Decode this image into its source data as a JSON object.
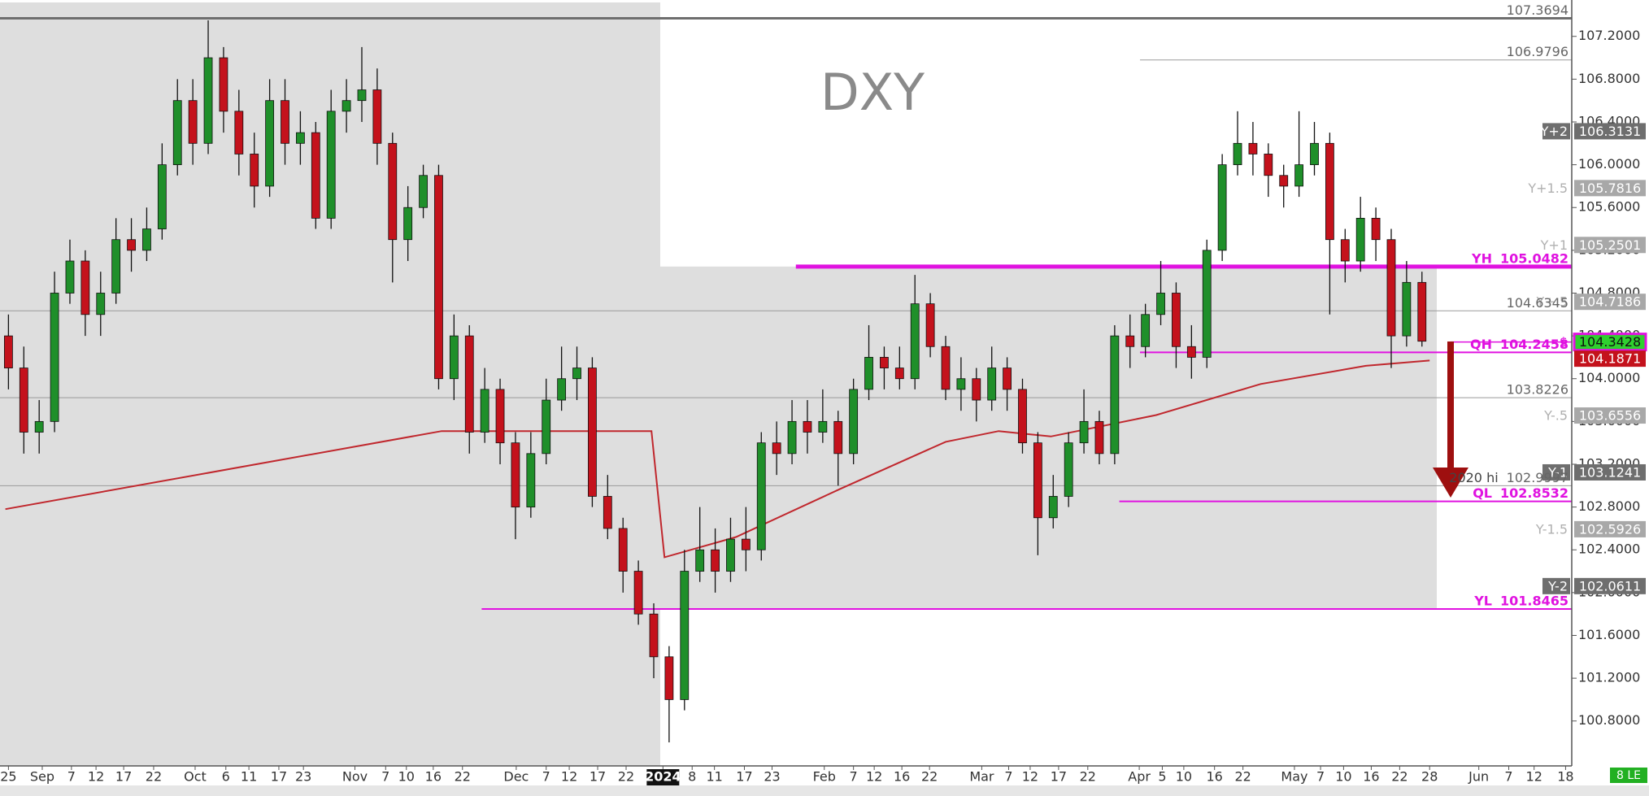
{
  "chart_data": {
    "type": "candlestick",
    "title": "DXY",
    "x": [
      0,
      2,
      4,
      6,
      8,
      10,
      12,
      14,
      16,
      18,
      20,
      22,
      24,
      26,
      28,
      30,
      32,
      34,
      36,
      38,
      40,
      42,
      44,
      46,
      48,
      50,
      52,
      54,
      56,
      58,
      60,
      62,
      64,
      66,
      68,
      70,
      72,
      74,
      76,
      78,
      80,
      82,
      84,
      86,
      88,
      90,
      92,
      94,
      96,
      98,
      100,
      102,
      104,
      106,
      108,
      110,
      112,
      114,
      116,
      118,
      120,
      122,
      124,
      126,
      128,
      130,
      132,
      134,
      136,
      138,
      140,
      142,
      144,
      146,
      148,
      150,
      152,
      154,
      156,
      158,
      160,
      162,
      164,
      166,
      168,
      170,
      172,
      174,
      176,
      178,
      180,
      182,
      184
    ],
    "open": [
      104.4,
      104.1,
      103.5,
      103.6,
      104.8,
      105.1,
      104.6,
      104.8,
      105.3,
      105.2,
      105.4,
      106.0,
      106.6,
      106.2,
      107.0,
      106.5,
      106.1,
      105.8,
      106.6,
      106.2,
      106.3,
      105.5,
      106.5,
      106.6,
      106.7,
      106.2,
      105.3,
      105.6,
      105.9,
      104.0,
      104.4,
      103.5,
      103.9,
      103.4,
      102.8,
      103.3,
      103.8,
      104.0,
      104.1,
      102.9,
      102.6,
      102.2,
      101.8,
      101.4,
      101.0,
      102.2,
      102.4,
      102.2,
      102.5,
      102.4,
      103.4,
      103.3,
      103.6,
      103.5,
      103.6,
      103.3,
      103.9,
      104.2,
      104.1,
      104.0,
      104.7,
      104.3,
      103.9,
      104.0,
      103.8,
      104.1,
      103.9,
      103.4,
      102.7,
      102.9,
      103.4,
      103.6,
      103.3,
      104.4,
      104.3,
      104.6,
      104.8,
      104.3,
      104.2,
      105.2,
      106.0,
      106.2,
      106.1,
      105.9,
      105.8,
      106.0,
      106.2,
      105.3,
      105.1,
      105.5,
      105.3,
      104.4,
      104.9
    ],
    "high": [
      104.6,
      104.3,
      103.8,
      105.0,
      105.3,
      105.2,
      105.0,
      105.5,
      105.5,
      105.6,
      106.2,
      106.8,
      106.8,
      107.35,
      107.1,
      106.7,
      106.3,
      106.8,
      106.8,
      106.5,
      106.4,
      106.7,
      106.8,
      107.1,
      106.9,
      106.3,
      105.8,
      106.0,
      106.0,
      104.6,
      104.5,
      104.1,
      104.0,
      103.5,
      103.5,
      104.0,
      104.3,
      104.3,
      104.2,
      103.1,
      102.7,
      102.3,
      101.9,
      101.5,
      102.4,
      102.8,
      102.6,
      102.7,
      102.8,
      103.5,
      103.6,
      103.8,
      103.8,
      103.9,
      103.7,
      104.0,
      104.5,
      104.3,
      104.3,
      104.97,
      104.8,
      104.4,
      104.2,
      104.1,
      104.3,
      104.2,
      104.0,
      103.5,
      103.1,
      103.5,
      103.9,
      103.7,
      104.5,
      104.6,
      104.7,
      105.1,
      104.9,
      104.5,
      105.3,
      106.1,
      106.5,
      106.4,
      106.2,
      106.0,
      106.5,
      106.4,
      106.3,
      105.4,
      105.7,
      105.6,
      105.4,
      105.1,
      105.0
    ],
    "low": [
      103.9,
      103.3,
      103.3,
      103.5,
      104.7,
      104.4,
      104.4,
      104.7,
      105.0,
      105.1,
      105.3,
      105.9,
      106.0,
      106.1,
      106.3,
      105.9,
      105.6,
      105.7,
      106.0,
      106.0,
      105.4,
      105.4,
      106.3,
      106.4,
      106.0,
      104.9,
      105.1,
      105.5,
      103.9,
      103.8,
      103.3,
      103.4,
      103.2,
      102.5,
      102.7,
      103.2,
      103.7,
      103.8,
      102.8,
      102.5,
      102.0,
      101.7,
      101.2,
      100.6,
      100.9,
      102.1,
      102.0,
      102.1,
      102.2,
      102.3,
      103.1,
      103.2,
      103.3,
      103.4,
      103.0,
      103.2,
      103.8,
      103.9,
      103.9,
      103.9,
      104.2,
      103.8,
      103.7,
      103.6,
      103.7,
      103.7,
      103.3,
      102.35,
      102.6,
      102.8,
      103.3,
      103.2,
      103.2,
      104.1,
      104.2,
      104.5,
      104.1,
      104.0,
      104.1,
      105.1,
      105.9,
      105.9,
      105.7,
      105.6,
      105.7,
      105.9,
      104.6,
      104.9,
      105.0,
      105.1,
      104.1,
      104.3,
      104.3
    ],
    "close": [
      104.1,
      103.5,
      103.6,
      104.8,
      105.1,
      104.6,
      104.8,
      105.3,
      105.2,
      105.4,
      106.0,
      106.6,
      106.2,
      107.0,
      106.5,
      106.1,
      105.8,
      106.6,
      106.2,
      106.3,
      105.5,
      106.5,
      106.6,
      106.7,
      106.2,
      105.3,
      105.6,
      105.9,
      104.0,
      104.4,
      103.5,
      103.9,
      103.4,
      102.8,
      103.3,
      103.8,
      104.0,
      104.1,
      102.9,
      102.6,
      102.2,
      101.8,
      101.4,
      101.0,
      102.2,
      102.4,
      102.2,
      102.5,
      102.4,
      103.4,
      103.3,
      103.6,
      103.5,
      103.6,
      103.3,
      103.9,
      104.2,
      104.1,
      104.0,
      104.7,
      104.3,
      103.9,
      104.0,
      103.8,
      104.1,
      103.9,
      103.4,
      102.7,
      102.9,
      103.4,
      103.6,
      103.3,
      104.4,
      104.3,
      104.6,
      104.8,
      104.3,
      104.2,
      105.2,
      106.0,
      106.2,
      106.1,
      105.9,
      105.8,
      106.0,
      106.2,
      105.3,
      105.1,
      105.5,
      105.3,
      104.4,
      104.9,
      104.35
    ],
    "up_color": "#1f8f2a",
    "down_color": "#c4121c",
    "xlim": [
      -1.1,
      203.5
    ],
    "ylim": [
      100.38,
      107.54
    ],
    "xticks": [
      {
        "value": 0,
        "label": "25"
      },
      {
        "value": 4.4,
        "label": "Sep"
      },
      {
        "value": 8.2,
        "label": "7"
      },
      {
        "value": 11.4,
        "label": "12"
      },
      {
        "value": 15.0,
        "label": "17"
      },
      {
        "value": 18.9,
        "label": "22"
      },
      {
        "value": 24.3,
        "label": "Oct"
      },
      {
        "value": 28.3,
        "label": "6"
      },
      {
        "value": 31.3,
        "label": "11"
      },
      {
        "value": 35.2,
        "label": "17"
      },
      {
        "value": 38.4,
        "label": "23"
      },
      {
        "value": 45.1,
        "label": "Nov"
      },
      {
        "value": 49.1,
        "label": "7"
      },
      {
        "value": 51.8,
        "label": "10"
      },
      {
        "value": 55.3,
        "label": "16"
      },
      {
        "value": 59.1,
        "label": "22"
      },
      {
        "value": 66.1,
        "label": "Dec"
      },
      {
        "value": 70.0,
        "label": "7"
      },
      {
        "value": 73.0,
        "label": "12"
      },
      {
        "value": 76.7,
        "label": "17"
      },
      {
        "value": 80.4,
        "label": "22"
      },
      {
        "value": 85.2,
        "label": "2024"
      },
      {
        "value": 89.0,
        "label": "8"
      },
      {
        "value": 91.9,
        "label": "11"
      },
      {
        "value": 95.8,
        "label": "17"
      },
      {
        "value": 99.4,
        "label": "23"
      },
      {
        "value": 106.2,
        "label": "Feb"
      },
      {
        "value": 110.0,
        "label": "7"
      },
      {
        "value": 112.7,
        "label": "12"
      },
      {
        "value": 116.3,
        "label": "16"
      },
      {
        "value": 119.9,
        "label": "22"
      },
      {
        "value": 126.7,
        "label": "Mar"
      },
      {
        "value": 130.2,
        "label": "7"
      },
      {
        "value": 133.0,
        "label": "12"
      },
      {
        "value": 136.7,
        "label": "17"
      },
      {
        "value": 140.5,
        "label": "22"
      },
      {
        "value": 147.2,
        "label": "Apr"
      },
      {
        "value": 150.2,
        "label": "5"
      },
      {
        "value": 153.0,
        "label": "10"
      },
      {
        "value": 157.0,
        "label": "16"
      },
      {
        "value": 160.7,
        "label": "22"
      },
      {
        "value": 167.4,
        "label": "May"
      },
      {
        "value": 170.8,
        "label": "7"
      },
      {
        "value": 173.8,
        "label": "10"
      },
      {
        "value": 177.4,
        "label": "16"
      },
      {
        "value": 181.1,
        "label": "22"
      },
      {
        "value": 185.0,
        "label": "28"
      },
      {
        "value": 191.4,
        "label": "Jun"
      },
      {
        "value": 195.3,
        "label": "7"
      },
      {
        "value": 198.6,
        "label": "12"
      },
      {
        "value": 202.7,
        "label": "18"
      }
    ],
    "xtick_highlight": 21,
    "yticks": [
      {
        "value": 100.8,
        "label": "100.8000"
      },
      {
        "value": 101.2,
        "label": "101.2000"
      },
      {
        "value": 101.6,
        "label": "101.6000"
      },
      {
        "value": 102.0,
        "label": "102.0000"
      },
      {
        "value": 102.4,
        "label": "102.4000"
      },
      {
        "value": 102.8,
        "label": "102.8000"
      },
      {
        "value": 103.2,
        "label": "103.2000"
      },
      {
        "value": 103.6,
        "label": "103.6000"
      },
      {
        "value": 104.0,
        "label": "104.0000"
      },
      {
        "value": 104.4,
        "label": "104.4000"
      },
      {
        "value": 104.8,
        "label": "104.8000"
      },
      {
        "value": 105.2,
        "label": "105.2000"
      },
      {
        "value": 105.6,
        "label": "105.6000"
      },
      {
        "value": 106.0,
        "label": "106.0000"
      },
      {
        "value": 106.4,
        "label": "106.4000"
      },
      {
        "value": 106.8,
        "label": "106.8000"
      },
      {
        "value": 107.2,
        "label": "107.2000"
      }
    ],
    "overlays": [
      {
        "color": "#c0272d",
        "x": [
          -0.4,
          56.4,
          83.7,
          85.4,
          94.7,
          108.3,
          122,
          128.9,
          135.7,
          149.4,
          163,
          176.7,
          185
        ],
        "values": [
          102.78,
          103.51,
          103.51,
          102.33,
          102.52,
          102.97,
          103.41,
          103.51,
          103.46,
          103.66,
          103.95,
          104.12,
          104.17
        ]
      }
    ],
    "levels": [
      {
        "value": 107.3694,
        "style": "plain",
        "line_from": -1.1,
        "line_width": 3
      },
      {
        "value": 106.9796,
        "style": "plain",
        "line_from": 147.3,
        "line_width": 1
      },
      {
        "tag": "Y+2",
        "value": 106.3131,
        "style": "box-dark"
      },
      {
        "tag": "Y+1.5",
        "value": 105.7816,
        "style": "box-light"
      },
      {
        "tag": "Y+1",
        "value": 105.2501,
        "style": "box-light"
      },
      {
        "tag": "YH",
        "value": 105.0482,
        "style": "magenta",
        "line_from": 102.5,
        "line_width": 5
      },
      {
        "tag": "Y+.5",
        "value": 104.7186,
        "style": "box-light"
      },
      {
        "value": 104.6345,
        "style": "plain",
        "line_from": -1.1,
        "line_width": 1
      },
      {
        "tag": "$",
        "value": 104.3428,
        "style": "box-green",
        "line_from": 187.7,
        "line_width": 1.5
      },
      {
        "tag": "QH",
        "value": 104.2458,
        "style": "magenta",
        "line_from": 147.3,
        "line_width": 2
      },
      {
        "value": 104.1871,
        "style": "box-red"
      },
      {
        "value": 103.8226,
        "style": "plain",
        "line_from": -1.1,
        "line_width": 1
      },
      {
        "tag": "Y-.5",
        "value": 103.6556,
        "style": "box-light"
      },
      {
        "tag": "Y-1",
        "value": 103.1241,
        "style": "box-dark"
      },
      {
        "tag": "2020 hi",
        "value": 102.9997,
        "style": "plain",
        "line_from": -1.1,
        "line_width": 1
      },
      {
        "tag": "QL",
        "value": 102.8532,
        "style": "magenta",
        "line_from": 144.6,
        "line_width": 2
      },
      {
        "tag": "Y-1.5",
        "value": 102.5926,
        "style": "box-light"
      },
      {
        "tag": "Y-2",
        "value": 102.0611,
        "style": "box-dark"
      },
      {
        "tag": "YL",
        "value": 101.8465,
        "style": "magenta",
        "line_from": 61.6,
        "line_width": 2
      }
    ],
    "corner_label": "8 LE"
  }
}
